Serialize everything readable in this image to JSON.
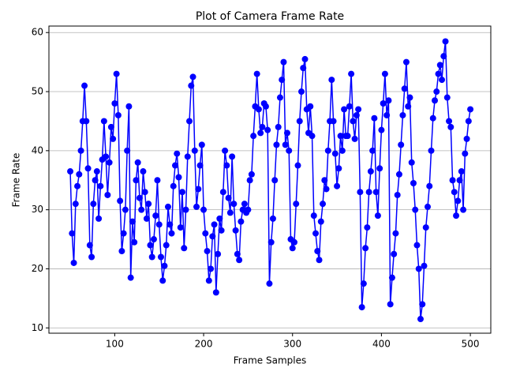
{
  "chart_data": {
    "type": "line",
    "title": "Plot of Camera Frame Rate",
    "xlabel": "Frame Samples",
    "ylabel": "Frame Rate",
    "color": "#0000ff",
    "grid": true,
    "markers": true,
    "xlim": [
      26,
      523
    ],
    "ylim": [
      9.1,
      61.1
    ],
    "xticks": [
      100,
      200,
      300,
      400,
      500
    ],
    "yticks": [
      10,
      20,
      30,
      40,
      50,
      60
    ],
    "x": [
      50,
      52,
      54,
      56,
      58,
      60,
      62,
      64,
      66,
      68,
      70,
      72,
      74,
      76,
      78,
      80,
      82,
      84,
      86,
      88,
      90,
      92,
      94,
      96,
      98,
      100,
      102,
      104,
      106,
      108,
      110,
      112,
      114,
      116,
      118,
      120,
      122,
      124,
      126,
      128,
      130,
      132,
      134,
      136,
      138,
      140,
      142,
      144,
      146,
      148,
      150,
      152,
      154,
      156,
      158,
      160,
      162,
      164,
      166,
      168,
      170,
      172,
      174,
      176,
      178,
      180,
      182,
      184,
      186,
      188,
      190,
      192,
      194,
      196,
      198,
      200,
      202,
      204,
      206,
      208,
      210,
      212,
      214,
      216,
      218,
      220,
      222,
      224,
      226,
      228,
      230,
      232,
      234,
      236,
      238,
      240,
      242,
      244,
      246,
      248,
      250,
      252,
      254,
      256,
      258,
      260,
      262,
      264,
      266,
      268,
      270,
      272,
      274,
      276,
      278,
      280,
      282,
      284,
      286,
      288,
      290,
      292,
      294,
      296,
      298,
      300,
      302,
      304,
      306,
      308,
      310,
      312,
      314,
      316,
      318,
      320,
      322,
      324,
      326,
      328,
      330,
      332,
      334,
      336,
      338,
      340,
      342,
      344,
      346,
      348,
      350,
      352,
      354,
      356,
      358,
      360,
      362,
      364,
      366,
      368,
      370,
      372,
      374,
      376,
      378,
      380,
      382,
      384,
      386,
      388,
      390,
      392,
      394,
      396,
      398,
      400,
      402,
      404,
      406,
      408,
      410,
      412,
      414,
      416,
      418,
      420,
      422,
      424,
      426,
      428,
      430,
      432,
      434,
      436,
      438,
      440,
      442,
      444,
      446,
      448,
      450,
      452,
      454,
      456,
      458,
      460,
      462,
      464,
      466,
      468,
      470,
      472,
      474,
      476,
      478,
      480,
      482,
      484,
      486,
      488,
      490,
      492,
      494,
      496,
      498,
      500
    ],
    "values": [
      36.5,
      26,
      21,
      31,
      34,
      36,
      40,
      45,
      51,
      45,
      37,
      24,
      22,
      31,
      35,
      36.5,
      28.5,
      34,
      38.5,
      45,
      39,
      32.5,
      38,
      44,
      42,
      48,
      53,
      46,
      31.5,
      23,
      26,
      30,
      40,
      47.5,
      18.5,
      28,
      24.5,
      35,
      38,
      32,
      30,
      36.5,
      33,
      28.5,
      31,
      24,
      22,
      25,
      29,
      35,
      27.5,
      22,
      18,
      20.5,
      24,
      30.5,
      27.5,
      26,
      34,
      37.5,
      39.5,
      35.5,
      27,
      33,
      23.5,
      30,
      39,
      45,
      51,
      52.5,
      40,
      30.5,
      33.5,
      37.5,
      41,
      30,
      26,
      23,
      18,
      20,
      25.5,
      27.5,
      16,
      22.5,
      28.5,
      26.5,
      33,
      40,
      37.5,
      32,
      29.5,
      39,
      31,
      26.5,
      22.5,
      21.5,
      28,
      30,
      31,
      29.5,
      30,
      35,
      36,
      42.5,
      47.5,
      53,
      47,
      43,
      44,
      48,
      47.5,
      43.5,
      17.5,
      24.5,
      28.5,
      35,
      41,
      44,
      49,
      52,
      55,
      41,
      43,
      40,
      25,
      23.5,
      24.5,
      31,
      37.5,
      45,
      50,
      54,
      55.5,
      47,
      43,
      47.5,
      42.5,
      29,
      26,
      23,
      21.5,
      28,
      31,
      35,
      33.5,
      40,
      45,
      52,
      45,
      39.5,
      34,
      37,
      42.5,
      40,
      47,
      42.5,
      42.5,
      47.5,
      53,
      45,
      42,
      46,
      47,
      33,
      13.5,
      17.5,
      23.5,
      27,
      33,
      36.5,
      40,
      45.5,
      33,
      29,
      37,
      43.5,
      48,
      53,
      46,
      48.5,
      14,
      18.5,
      22.5,
      26,
      32.5,
      36,
      41,
      46,
      50.5,
      55,
      47.5,
      49,
      38,
      34.5,
      30,
      24,
      20,
      11.5,
      14,
      20.5,
      27,
      30.5,
      34,
      40,
      45.5,
      48.5,
      50,
      53,
      54.5,
      52,
      56,
      58.5,
      49,
      45,
      44,
      35,
      33,
      29,
      31.5,
      35,
      36.5,
      30,
      39.5,
      42,
      45,
      47
    ]
  }
}
